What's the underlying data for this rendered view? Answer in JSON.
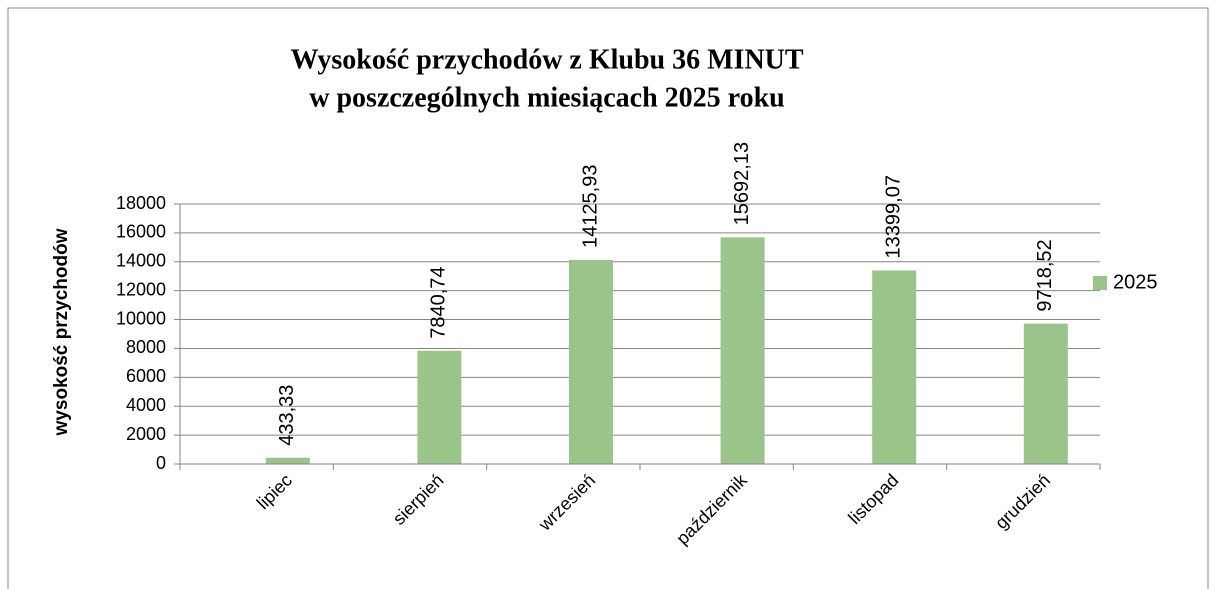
{
  "chart_data": {
    "type": "bar",
    "title": [
      "Wysokość przychodów z Klubu 36 MINUT",
      "w poszczególnych miesiącach 2025 roku"
    ],
    "y_label": "wysokość przychodów",
    "categories": [
      "lipiec",
      "sierpień",
      "wrzesień",
      "październik",
      "listopad",
      "grudzień"
    ],
    "series": [
      {
        "name": "2025",
        "color": "#9bc48a",
        "values": [
          433.33,
          7840.74,
          14125.93,
          15692.13,
          13399.07,
          9718.52
        ],
        "value_labels": [
          "433,33",
          "7840,74",
          "14125,93",
          "15692,13",
          "13399,07",
          "9718,52"
        ]
      }
    ],
    "ylim": [
      0,
      18000
    ],
    "yticks": [
      0,
      2000,
      4000,
      6000,
      8000,
      10000,
      12000,
      14000,
      16000,
      18000
    ],
    "grid": true,
    "legend": "right"
  }
}
